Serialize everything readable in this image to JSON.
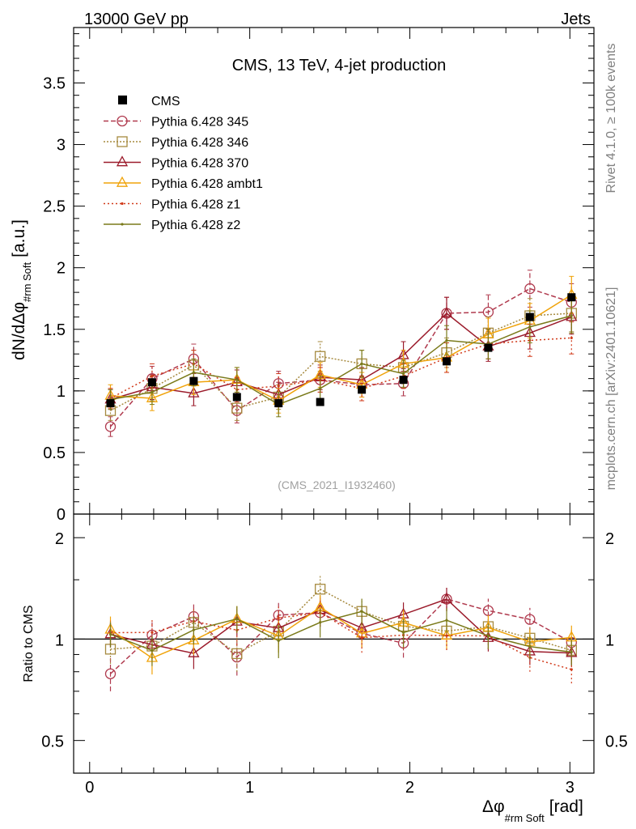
{
  "header": {
    "energy_label": "13000 GeV pp",
    "group_label": "Jets",
    "rivet_label": "Rivet 4.1.0, ≥ 100k events",
    "mcplots_label": "mcplots.cern.ch [arXiv:2401.10621]"
  },
  "chart_data": [
    {
      "type": "line",
      "panel": "main",
      "title": "CMS, 13 TeV, 4-jet production",
      "analysis_id": "(CMS_2021_I1932460)",
      "ylabel_main": "dN/dΔφ",
      "ylabel_sub": "#rm Soft",
      "ylabel_unit": "[a.u.]",
      "xlabel_main": "Δφ",
      "xlabel_sub": "#rm Soft",
      "xlabel_unit": "[rad]",
      "xlim": [
        -0.1,
        3.15
      ],
      "ylim": [
        0,
        3.95
      ],
      "y_ticks": [
        0,
        0.5,
        1,
        1.5,
        2,
        2.5,
        3,
        3.5
      ],
      "y_tick_labels": [
        "0",
        "0.5",
        "1",
        "1.5",
        "2",
        "2.5",
        "3",
        "3.5"
      ],
      "x": [
        0.13,
        0.39,
        0.65,
        0.92,
        1.18,
        1.44,
        1.7,
        1.96,
        2.23,
        2.49,
        2.75,
        3.01
      ],
      "data": {
        "name": "CMS",
        "color": "#000000",
        "values": [
          0.9,
          1.07,
          1.08,
          0.95,
          0.9,
          0.91,
          1.01,
          1.09,
          1.24,
          1.35,
          1.6,
          1.76
        ]
      },
      "series": [
        {
          "name": "Pythia 6.428 345",
          "color": "#b03a4e",
          "marker": "circle",
          "dash": "6,3",
          "values": [
            0.71,
            1.1,
            1.26,
            0.84,
            1.06,
            1.09,
            1.05,
            1.06,
            1.63,
            1.64,
            1.83,
            1.72
          ],
          "errors": [
            0.08,
            0.1,
            0.12,
            0.1,
            0.1,
            0.1,
            0.1,
            0.1,
            0.13,
            0.14,
            0.15,
            0.15
          ]
        },
        {
          "name": "Pythia 6.428 346",
          "color": "#a68a3f",
          "marker": "square",
          "dash": "2,2",
          "values": [
            0.84,
            1.02,
            1.21,
            0.86,
            0.95,
            1.28,
            1.22,
            1.19,
            1.31,
            1.47,
            1.61,
            1.63
          ],
          "errors": [
            0.08,
            0.1,
            0.12,
            0.1,
            0.1,
            0.12,
            0.11,
            0.11,
            0.12,
            0.13,
            0.14,
            0.15
          ]
        },
        {
          "name": "Pythia 6.428 370",
          "color": "#9b1b2b",
          "marker": "triangle",
          "dash": "",
          "values": [
            0.93,
            1.03,
            0.98,
            1.07,
            0.97,
            1.11,
            1.09,
            1.29,
            1.63,
            1.36,
            1.47,
            1.6
          ],
          "errors": [
            0.08,
            0.1,
            0.1,
            0.1,
            0.1,
            0.1,
            0.1,
            0.11,
            0.13,
            0.12,
            0.13,
            0.14
          ]
        },
        {
          "name": "Pythia 6.428 ambt1",
          "color": "#f0a30a",
          "marker": "triangle",
          "dash": "",
          "values": [
            0.96,
            0.94,
            1.07,
            1.09,
            0.92,
            1.13,
            1.05,
            1.22,
            1.27,
            1.46,
            1.57,
            1.78
          ],
          "errors": [
            0.09,
            0.1,
            0.1,
            0.1,
            0.1,
            0.1,
            0.1,
            0.11,
            0.12,
            0.13,
            0.14,
            0.15
          ]
        },
        {
          "name": "Pythia 6.428 z1",
          "color": "#d13a1a",
          "marker": "dot",
          "dash": "2,3",
          "values": [
            0.94,
            1.12,
            1.22,
            1.01,
            1.04,
            1.09,
            1.02,
            1.12,
            1.27,
            1.38,
            1.41,
            1.43
          ],
          "errors": [
            0.08,
            0.1,
            0.11,
            0.1,
            0.1,
            0.1,
            0.1,
            0.1,
            0.12,
            0.12,
            0.13,
            0.13
          ]
        },
        {
          "name": "Pythia 6.428 z2",
          "color": "#7a7a1a",
          "marker": "dot",
          "dash": "",
          "values": [
            0.93,
            0.99,
            1.15,
            1.09,
            0.89,
            1.02,
            1.22,
            1.14,
            1.41,
            1.38,
            1.52,
            1.61
          ],
          "errors": [
            0.08,
            0.1,
            0.11,
            0.1,
            0.1,
            0.1,
            0.11,
            0.11,
            0.12,
            0.12,
            0.13,
            0.14
          ]
        }
      ]
    },
    {
      "type": "line",
      "panel": "ratio",
      "ylabel": "Ratio to CMS",
      "ylim": [
        0.4,
        2.35
      ],
      "y_scale": "log",
      "y_ticks": [
        0.5,
        1,
        2
      ],
      "y_tick_labels": [
        "0.5",
        "1",
        "2"
      ],
      "x_ticks": [
        0,
        1,
        2,
        3
      ],
      "x_tick_labels": [
        "0",
        "1",
        "2",
        "3"
      ],
      "reference": 1
    }
  ]
}
